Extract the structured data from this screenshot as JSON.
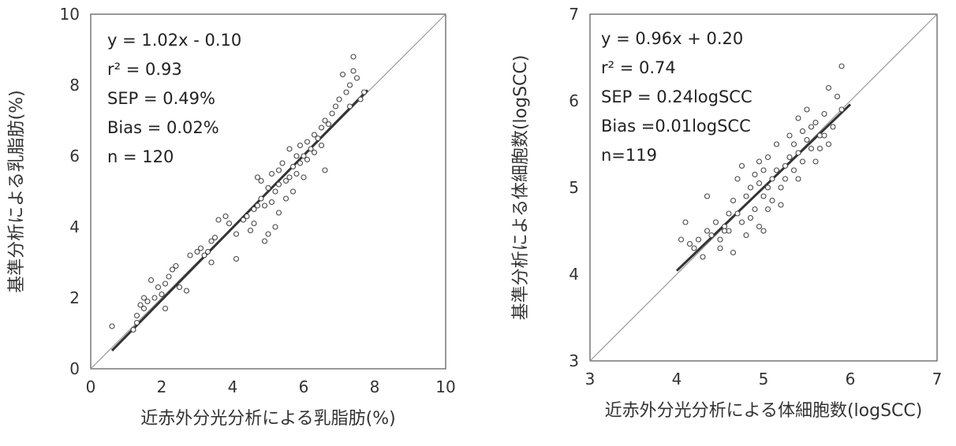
{
  "chart_data": [
    {
      "type": "scatter",
      "title": "",
      "xlabel": "近赤外分光分析による乳脂肪(%)",
      "ylabel": "基準分析による乳脂肪(%)",
      "xlim": [
        0,
        10
      ],
      "ylim": [
        0,
        10
      ],
      "xticks": [
        "0",
        "2",
        "4",
        "6",
        "8",
        "10"
      ],
      "yticks": [
        "0",
        "2",
        "4",
        "6",
        "8",
        "10"
      ],
      "grid": false,
      "stats": [
        "y = 1.02x - 0.10",
        "r² = 0.93",
        "SEP = 0.49%",
        "Bias = 0.02%",
        "n = 120"
      ],
      "regression": {
        "slope": 1.02,
        "intercept": -0.1,
        "x_range": [
          0.6,
          7.8
        ]
      },
      "identity_line": true,
      "series": [
        {
          "points": [
            [
              0.6,
              1.2
            ],
            [
              1.2,
              1.1
            ],
            [
              1.3,
              1.3
            ],
            [
              1.3,
              1.5
            ],
            [
              1.4,
              1.8
            ],
            [
              1.5,
              2.0
            ],
            [
              1.5,
              1.7
            ],
            [
              1.6,
              1.9
            ],
            [
              1.7,
              2.5
            ],
            [
              1.8,
              2.0
            ],
            [
              1.9,
              2.3
            ],
            [
              2.0,
              2.1
            ],
            [
              2.1,
              1.7
            ],
            [
              2.1,
              2.4
            ],
            [
              2.2,
              2.6
            ],
            [
              2.3,
              2.8
            ],
            [
              2.4,
              2.9
            ],
            [
              2.5,
              2.3
            ],
            [
              2.7,
              2.2
            ],
            [
              2.8,
              3.2
            ],
            [
              3.0,
              3.3
            ],
            [
              3.1,
              3.4
            ],
            [
              3.2,
              3.2
            ],
            [
              3.3,
              3.3
            ],
            [
              3.4,
              3.0
            ],
            [
              3.4,
              3.6
            ],
            [
              3.5,
              3.7
            ],
            [
              3.6,
              4.2
            ],
            [
              3.8,
              4.3
            ],
            [
              3.9,
              4.1
            ],
            [
              4.1,
              3.1
            ],
            [
              4.1,
              3.8
            ],
            [
              4.3,
              4.2
            ],
            [
              4.4,
              4.3
            ],
            [
              4.5,
              3.9
            ],
            [
              4.6,
              4.5
            ],
            [
              4.6,
              4.1
            ],
            [
              4.7,
              4.6
            ],
            [
              4.7,
              5.4
            ],
            [
              4.8,
              4.8
            ],
            [
              4.8,
              5.3
            ],
            [
              4.9,
              4.6
            ],
            [
              4.9,
              3.6
            ],
            [
              5.0,
              3.8
            ],
            [
              5.0,
              5.1
            ],
            [
              5.1,
              5.5
            ],
            [
              5.1,
              4.7
            ],
            [
              5.2,
              5.0
            ],
            [
              5.2,
              4.0
            ],
            [
              5.3,
              5.6
            ],
            [
              5.3,
              5.2
            ],
            [
              5.3,
              4.4
            ],
            [
              5.4,
              5.8
            ],
            [
              5.5,
              5.3
            ],
            [
              5.5,
              4.8
            ],
            [
              5.6,
              5.4
            ],
            [
              5.6,
              6.2
            ],
            [
              5.7,
              5.7
            ],
            [
              5.7,
              5.0
            ],
            [
              5.8,
              6.0
            ],
            [
              5.8,
              5.5
            ],
            [
              5.9,
              6.3
            ],
            [
              5.9,
              5.8
            ],
            [
              6.0,
              6.0
            ],
            [
              6.0,
              5.4
            ],
            [
              6.1,
              6.4
            ],
            [
              6.1,
              5.9
            ],
            [
              6.2,
              6.2
            ],
            [
              6.3,
              6.6
            ],
            [
              6.3,
              6.1
            ],
            [
              6.4,
              6.5
            ],
            [
              6.5,
              6.8
            ],
            [
              6.5,
              6.3
            ],
            [
              6.6,
              7.0
            ],
            [
              6.6,
              5.6
            ],
            [
              6.7,
              6.9
            ],
            [
              6.8,
              7.2
            ],
            [
              6.9,
              7.4
            ],
            [
              7.0,
              7.6
            ],
            [
              7.1,
              8.3
            ],
            [
              7.2,
              7.8
            ],
            [
              7.3,
              8.0
            ],
            [
              7.3,
              7.4
            ],
            [
              7.4,
              8.8
            ],
            [
              7.4,
              8.4
            ],
            [
              7.5,
              8.2
            ],
            [
              7.6,
              7.6
            ],
            [
              7.7,
              7.8
            ]
          ]
        }
      ]
    },
    {
      "type": "scatter",
      "title": "",
      "xlabel": "近赤外分光分析による体細胞数(logSCC)",
      "ylabel": "基準分析による体細胞数(logSCC)",
      "xlim": [
        3,
        7
      ],
      "ylim": [
        3,
        7
      ],
      "xticks": [
        "3",
        "4",
        "5",
        "6",
        "7"
      ],
      "yticks": [
        "3",
        "4",
        "5",
        "6",
        "7"
      ],
      "grid": false,
      "stats": [
        "y = 0.96x + 0.20",
        "r² = 0.74",
        "SEP = 0.24logSCC",
        "Bias =0.01logSCC",
        "n=119"
      ],
      "regression": {
        "slope": 0.96,
        "intercept": 0.2,
        "x_range": [
          4.0,
          6.0
        ]
      },
      "identity_line": true,
      "series": [
        {
          "points": [
            [
              4.05,
              4.4
            ],
            [
              4.1,
              4.6
            ],
            [
              4.15,
              4.35
            ],
            [
              4.2,
              4.3
            ],
            [
              4.25,
              4.4
            ],
            [
              4.3,
              4.2
            ],
            [
              4.35,
              4.5
            ],
            [
              4.35,
              4.9
            ],
            [
              4.4,
              4.45
            ],
            [
              4.45,
              4.6
            ],
            [
              4.5,
              4.4
            ],
            [
              4.5,
              4.3
            ],
            [
              4.55,
              4.55
            ],
            [
              4.6,
              4.7
            ],
            [
              4.6,
              4.5
            ],
            [
              4.65,
              4.85
            ],
            [
              4.7,
              4.7
            ],
            [
              4.7,
              5.1
            ],
            [
              4.75,
              4.6
            ],
            [
              4.75,
              5.25
            ],
            [
              4.8,
              4.9
            ],
            [
              4.85,
              4.65
            ],
            [
              4.85,
              5.0
            ],
            [
              4.9,
              4.75
            ],
            [
              4.9,
              5.15
            ],
            [
              4.95,
              4.55
            ],
            [
              4.95,
              5.05
            ],
            [
              4.95,
              5.3
            ],
            [
              5.0,
              4.9
            ],
            [
              5.0,
              5.2
            ],
            [
              5.0,
              4.5
            ],
            [
              5.05,
              5.0
            ],
            [
              5.05,
              5.35
            ],
            [
              5.05,
              4.75
            ],
            [
              5.1,
              5.1
            ],
            [
              5.1,
              4.85
            ],
            [
              5.15,
              5.2
            ],
            [
              5.15,
              5.5
            ],
            [
              5.2,
              5.0
            ],
            [
              5.2,
              4.8
            ],
            [
              5.25,
              5.25
            ],
            [
              5.25,
              5.1
            ],
            [
              5.3,
              5.35
            ],
            [
              5.3,
              5.6
            ],
            [
              5.35,
              5.2
            ],
            [
              5.35,
              5.5
            ],
            [
              5.4,
              5.4
            ],
            [
              5.4,
              5.8
            ],
            [
              5.4,
              5.1
            ],
            [
              5.45,
              5.65
            ],
            [
              5.45,
              5.3
            ],
            [
              5.5,
              5.55
            ],
            [
              5.5,
              5.9
            ],
            [
              5.55,
              5.45
            ],
            [
              5.55,
              5.7
            ],
            [
              5.6,
              5.3
            ],
            [
              5.6,
              5.75
            ],
            [
              5.65,
              5.6
            ],
            [
              5.65,
              5.45
            ],
            [
              5.7,
              5.85
            ],
            [
              5.7,
              5.6
            ],
            [
              5.75,
              5.5
            ],
            [
              5.75,
              6.15
            ],
            [
              5.8,
              5.7
            ],
            [
              5.85,
              6.05
            ],
            [
              5.9,
              6.4
            ],
            [
              5.9,
              5.9
            ],
            [
              4.55,
              4.5
            ],
            [
              4.65,
              4.25
            ],
            [
              4.8,
              4.45
            ]
          ]
        }
      ]
    }
  ]
}
